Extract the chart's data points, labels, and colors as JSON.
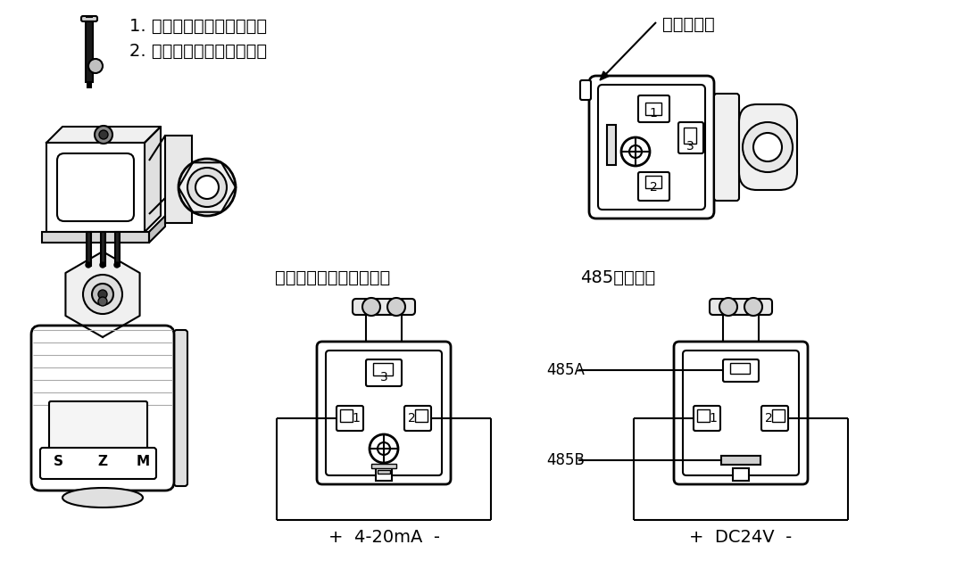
{
  "bg_color": "#ffffff",
  "line_color": "#000000",
  "text_color": "#000000",
  "fig_width": 10.8,
  "fig_height": 6.29,
  "text_instructions_1": "1. 拧下螺丝，向上拔出插头",
  "text_instructions_2": "2. 撬开插头，按照图示接线",
  "text_label_open": "从此处撬开",
  "text_two_wire": "两线制变送输出型接线：",
  "text_485": "485型接线：",
  "text_485A": "485A",
  "text_485B": "485B",
  "text_4_20mA": "+  4-20mA  -",
  "text_DC24V": "+  DC24V  -",
  "font_size_main": 14,
  "font_size_label": 12,
  "font_size_pin": 10,
  "font_size_szm": 11
}
